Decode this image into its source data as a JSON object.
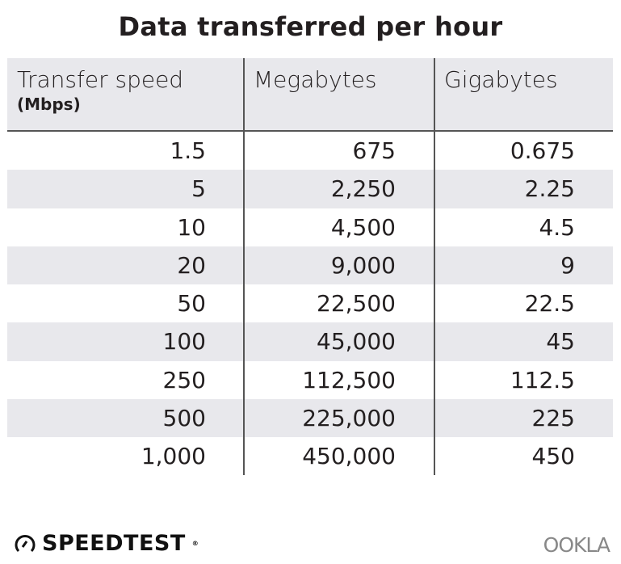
{
  "chart_data": {
    "type": "table",
    "title": "Data transferred per hour",
    "columns": [
      {
        "label": "Transfer speed",
        "unit": "(Mbps)"
      },
      {
        "label": "Megabytes"
      },
      {
        "label": "Gigabytes"
      }
    ],
    "rows": [
      [
        "1.5",
        "675",
        "0.675"
      ],
      [
        "5",
        "2,250",
        "2.25"
      ],
      [
        "10",
        "4,500",
        "4.5"
      ],
      [
        "20",
        "9,000",
        "9"
      ],
      [
        "50",
        "22,500",
        "22.5"
      ],
      [
        "100",
        "45,000",
        "45"
      ],
      [
        "250",
        "112,500",
        "112.5"
      ],
      [
        "500",
        "225,000",
        "225"
      ],
      [
        "1,000",
        "450,000",
        "450"
      ]
    ],
    "colors": {
      "header_bg": "#e8e8ec",
      "stripe_bg": "#e8e8ec",
      "text": "#231f20",
      "rule": "#555555"
    }
  },
  "footer": {
    "brand": "SPEEDTEST",
    "brand_mark": "®",
    "partner": "OOKLA",
    "brand_icon": "gauge-icon"
  }
}
